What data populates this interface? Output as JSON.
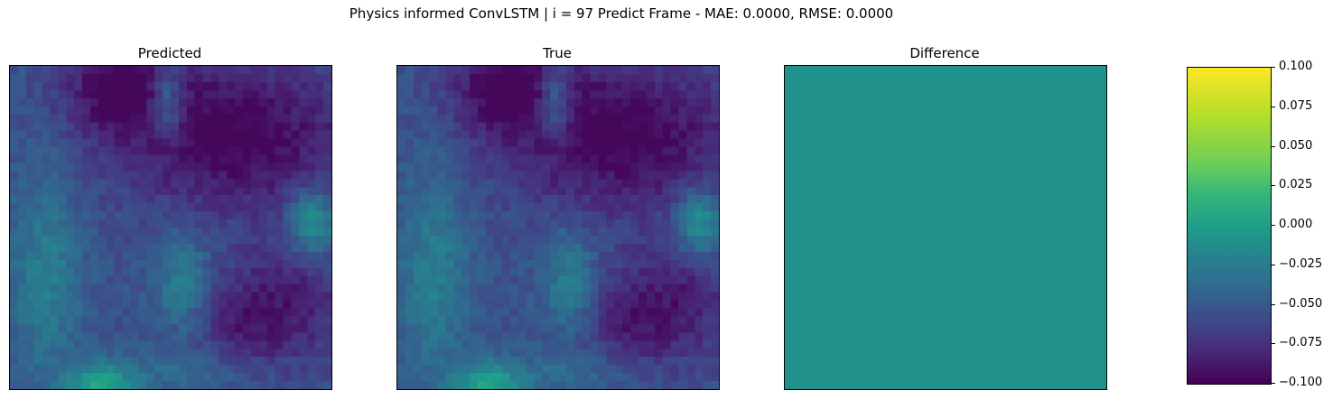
{
  "title": "Physics informed ConvLSTM | i = 97 Predict Frame - MAE: 0.0000, RMSE: 0.0000",
  "panels": [
    {
      "title": "Predicted"
    },
    {
      "title": "True"
    },
    {
      "title": "Difference"
    }
  ],
  "colorbar": {
    "colormap": "viridis",
    "ticks": [
      "0.100",
      "0.075",
      "0.050",
      "0.025",
      "0.000",
      "−0.025",
      "−0.050",
      "−0.075",
      "−0.100"
    ],
    "range": [
      -0.1,
      0.1
    ]
  },
  "chart_data": {
    "type": "heatmap",
    "title": "Physics informed ConvLSTM | i = 97 Predict Frame - MAE: 0.0000, RMSE: 0.0000",
    "grid_size": [
      40,
      40
    ],
    "subplots": [
      "Predicted",
      "True",
      "Difference"
    ],
    "difference_value": 0.0,
    "mae": 0.0,
    "rmse": 0.0,
    "colorbar_range": [
      -0.1,
      0.1
    ],
    "colors": {
      "difference_fill": "#21918c",
      "low": "#440154",
      "high": "#fde725"
    }
  }
}
